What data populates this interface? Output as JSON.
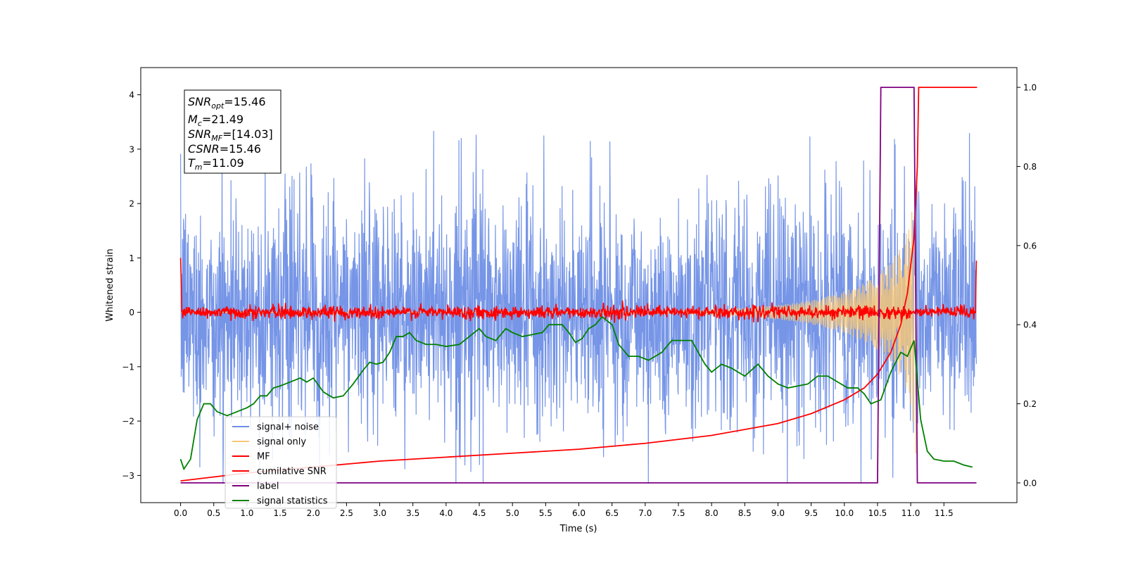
{
  "chart_data": {
    "type": "line",
    "xlabel": "Time (s)",
    "ylabel": "Whitened strain",
    "xlim": [
      -0.6,
      12.6
    ],
    "ylim": [
      -3.5,
      4.5
    ],
    "y2lim": [
      -0.05,
      1.05
    ],
    "xticks": [
      "0.0",
      "0.5",
      "1.0",
      "1.5",
      "2.0",
      "2.5",
      "3.0",
      "3.5",
      "4.0",
      "4.5",
      "5.0",
      "5.5",
      "6.0",
      "6.5",
      "7.0",
      "7.5",
      "8.0",
      "8.5",
      "9.0",
      "9.5",
      "10.0",
      "10.5",
      "11.0",
      "11.5"
    ],
    "yticks": [
      "4",
      "3",
      "2",
      "1",
      "0",
      "−1",
      "−2",
      "−3"
    ],
    "y2ticks": [
      "1.0",
      "0.8",
      "0.6",
      "0.4",
      "0.2",
      "0.0"
    ],
    "annotation": {
      "snr_opt_base": "SNR",
      "snr_opt_sub": "opt",
      "snr_opt_value": "=15.46",
      "mc_base": "M",
      "mc_sub": "c",
      "mc_value": "=21.49",
      "snr_mf_base": "SNR",
      "snr_mf_sub": "MF",
      "snr_mf_value": "=[14.03]",
      "csnr_base": "CSNR",
      "csnr_value": "=15.46",
      "tm_base": "T",
      "tm_sub": "m",
      "tm_value": "=11.09"
    },
    "series": [
      {
        "name": "signal+ noise",
        "axis": "left",
        "color": "#6f8fe6",
        "description": "whitened noise, amplitude ~±1.5, spikes to ±3.3, t=0 to 11.99"
      },
      {
        "name": "signal only",
        "axis": "left",
        "color": "#f5c77a",
        "chirp": {
          "t_start": 9.5,
          "t_merge": 11.09,
          "max_amplitude": 2.7
        }
      },
      {
        "name": "MF",
        "axis": "left",
        "color": "#ff0000",
        "description": "matched filter output near 0, spike to 1.0 at t=0 and 0.95 at t=11.99"
      },
      {
        "name": "cumilative SNR",
        "axis": "right",
        "color": "#ff0000",
        "x": [
          0.0,
          1.0,
          2.0,
          3.0,
          4.0,
          5.0,
          6.0,
          7.0,
          8.0,
          9.0,
          9.5,
          10.0,
          10.3,
          10.5,
          10.7,
          10.85,
          10.95,
          11.05,
          11.1,
          11.12,
          12.0
        ],
        "y": [
          0.005,
          0.025,
          0.04,
          0.055,
          0.065,
          0.075,
          0.085,
          0.1,
          0.12,
          0.15,
          0.175,
          0.21,
          0.24,
          0.275,
          0.33,
          0.4,
          0.48,
          0.62,
          0.8,
          1.0,
          1.0
        ]
      },
      {
        "name": "label",
        "axis": "right",
        "color": "#800080",
        "x": [
          0.0,
          10.5,
          10.55,
          11.05,
          11.1,
          11.99
        ],
        "y": [
          0.0,
          0.0,
          1.0,
          1.0,
          0.0,
          0.0
        ]
      },
      {
        "name": "signal statistics",
        "axis": "right",
        "color": "#008000",
        "x": [
          0.0,
          0.05,
          0.15,
          0.25,
          0.35,
          0.45,
          0.55,
          0.7,
          0.85,
          1.0,
          1.1,
          1.2,
          1.3,
          1.4,
          1.5,
          1.65,
          1.8,
          1.9,
          2.0,
          2.15,
          2.3,
          2.45,
          2.6,
          2.75,
          2.85,
          2.95,
          3.05,
          3.15,
          3.25,
          3.35,
          3.45,
          3.55,
          3.7,
          3.85,
          4.0,
          4.2,
          4.35,
          4.5,
          4.6,
          4.75,
          4.9,
          5.0,
          5.15,
          5.3,
          5.45,
          5.55,
          5.65,
          5.75,
          5.85,
          5.95,
          6.05,
          6.15,
          6.25,
          6.35,
          6.5,
          6.6,
          6.75,
          6.9,
          7.05,
          7.25,
          7.4,
          7.55,
          7.7,
          7.8,
          7.9,
          8.0,
          8.15,
          8.3,
          8.5,
          8.7,
          8.85,
          9.0,
          9.15,
          9.3,
          9.45,
          9.6,
          9.75,
          9.9,
          10.05,
          10.2,
          10.3,
          10.4,
          10.55,
          10.7,
          10.85,
          10.95,
          11.05,
          11.15,
          11.25,
          11.35,
          11.5,
          11.65,
          11.8,
          11.93
        ],
        "y": [
          0.06,
          0.035,
          0.06,
          0.16,
          0.2,
          0.2,
          0.18,
          0.17,
          0.18,
          0.19,
          0.2,
          0.22,
          0.22,
          0.24,
          0.245,
          0.255,
          0.265,
          0.255,
          0.265,
          0.23,
          0.215,
          0.22,
          0.25,
          0.285,
          0.305,
          0.3,
          0.305,
          0.33,
          0.37,
          0.37,
          0.38,
          0.36,
          0.35,
          0.35,
          0.345,
          0.35,
          0.37,
          0.39,
          0.37,
          0.36,
          0.39,
          0.38,
          0.37,
          0.375,
          0.38,
          0.4,
          0.4,
          0.4,
          0.38,
          0.355,
          0.365,
          0.39,
          0.4,
          0.42,
          0.4,
          0.35,
          0.32,
          0.32,
          0.31,
          0.33,
          0.36,
          0.36,
          0.36,
          0.33,
          0.3,
          0.28,
          0.3,
          0.29,
          0.27,
          0.3,
          0.27,
          0.25,
          0.24,
          0.245,
          0.25,
          0.27,
          0.27,
          0.255,
          0.24,
          0.24,
          0.225,
          0.2,
          0.21,
          0.28,
          0.33,
          0.32,
          0.36,
          0.16,
          0.08,
          0.06,
          0.055,
          0.055,
          0.045,
          0.04
        ]
      }
    ],
    "legend": {
      "placement": "lower-left",
      "entries": [
        "signal+ noise",
        "signal only",
        "MF",
        "cumilative SNR",
        "label",
        "signal statistics"
      ]
    },
    "grid": false
  }
}
